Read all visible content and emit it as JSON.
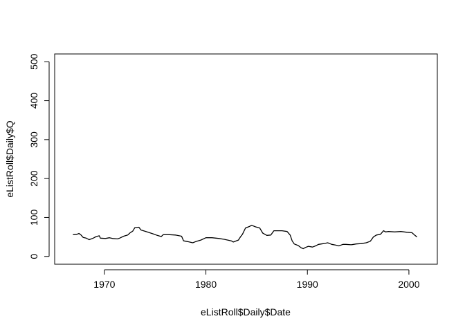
{
  "chart_data": {
    "type": "line",
    "xlabel": "eListRoll$Daily$Date",
    "ylabel": "eListRoll$Daily$Q",
    "xlim": [
      1965.1,
      2002.8
    ],
    "ylim": [
      0,
      500
    ],
    "xticks": [
      1970,
      1980,
      1990,
      2000
    ],
    "yticks": [
      0,
      100,
      200,
      300,
      400,
      500
    ],
    "xtick_labels": [
      "1970",
      "1980",
      "1990",
      "2000"
    ],
    "ytick_labels": [
      "0",
      "100",
      "200",
      "300",
      "400",
      "500"
    ],
    "grid": false,
    "line_color": "#000000",
    "series": [
      {
        "x": [
          1966.9,
          1967.3,
          1967.5,
          1967.7,
          1967.9,
          1968.2,
          1968.5,
          1968.9,
          1969.2,
          1969.5,
          1969.6,
          1970.1,
          1970.5,
          1970.8,
          1971.3,
          1971.5,
          1971.9,
          1972.3,
          1972.5,
          1972.8,
          1973.0,
          1973.4,
          1973.6,
          1974.2,
          1974.8,
          1975.2,
          1975.6,
          1975.8,
          1976.3,
          1977.0,
          1977.6,
          1977.8,
          1978.2,
          1978.7,
          1979.0,
          1979.5,
          1980.0,
          1980.6,
          1981.3,
          1981.8,
          1982.5,
          1982.7,
          1983.2,
          1983.4,
          1983.6,
          1983.9,
          1984.3,
          1984.5,
          1984.9,
          1985.3,
          1985.6,
          1986.0,
          1986.4,
          1986.7,
          1987.1,
          1987.5,
          1988.0,
          1988.3,
          1988.5,
          1988.7,
          1989.1,
          1989.4,
          1989.6,
          1989.8,
          1990.1,
          1990.5,
          1990.8,
          1991.1,
          1991.6,
          1992.0,
          1992.4,
          1992.8,
          1993.1,
          1993.5,
          1993.8,
          1994.3,
          1994.8,
          1995.3,
          1995.8,
          1996.2,
          1996.5,
          1996.8,
          1997.2,
          1997.5,
          1997.7,
          1998.0,
          1998.6,
          1999.2,
          1999.8,
          2000.3,
          2000.6,
          2000.8
        ],
        "y": [
          56,
          57,
          59,
          55,
          49,
          47,
          43,
          47,
          51,
          53,
          47,
          46,
          48,
          46,
          45,
          47,
          52,
          55,
          60,
          65,
          74,
          75,
          68,
          63,
          58,
          54,
          51,
          56,
          56,
          55,
          52,
          40,
          38,
          35,
          38,
          42,
          48,
          48,
          46,
          44,
          40,
          37,
          42,
          50,
          57,
          73,
          77,
          80,
          76,
          73,
          60,
          54,
          55,
          66,
          66,
          66,
          64,
          55,
          40,
          32,
          28,
          22,
          20,
          23,
          26,
          24,
          27,
          31,
          33,
          35,
          31,
          29,
          27,
          31,
          31,
          30,
          32,
          33,
          35,
          39,
          50,
          55,
          57,
          66,
          63,
          64,
          63,
          64,
          62,
          61,
          54,
          50
        ]
      }
    ]
  }
}
